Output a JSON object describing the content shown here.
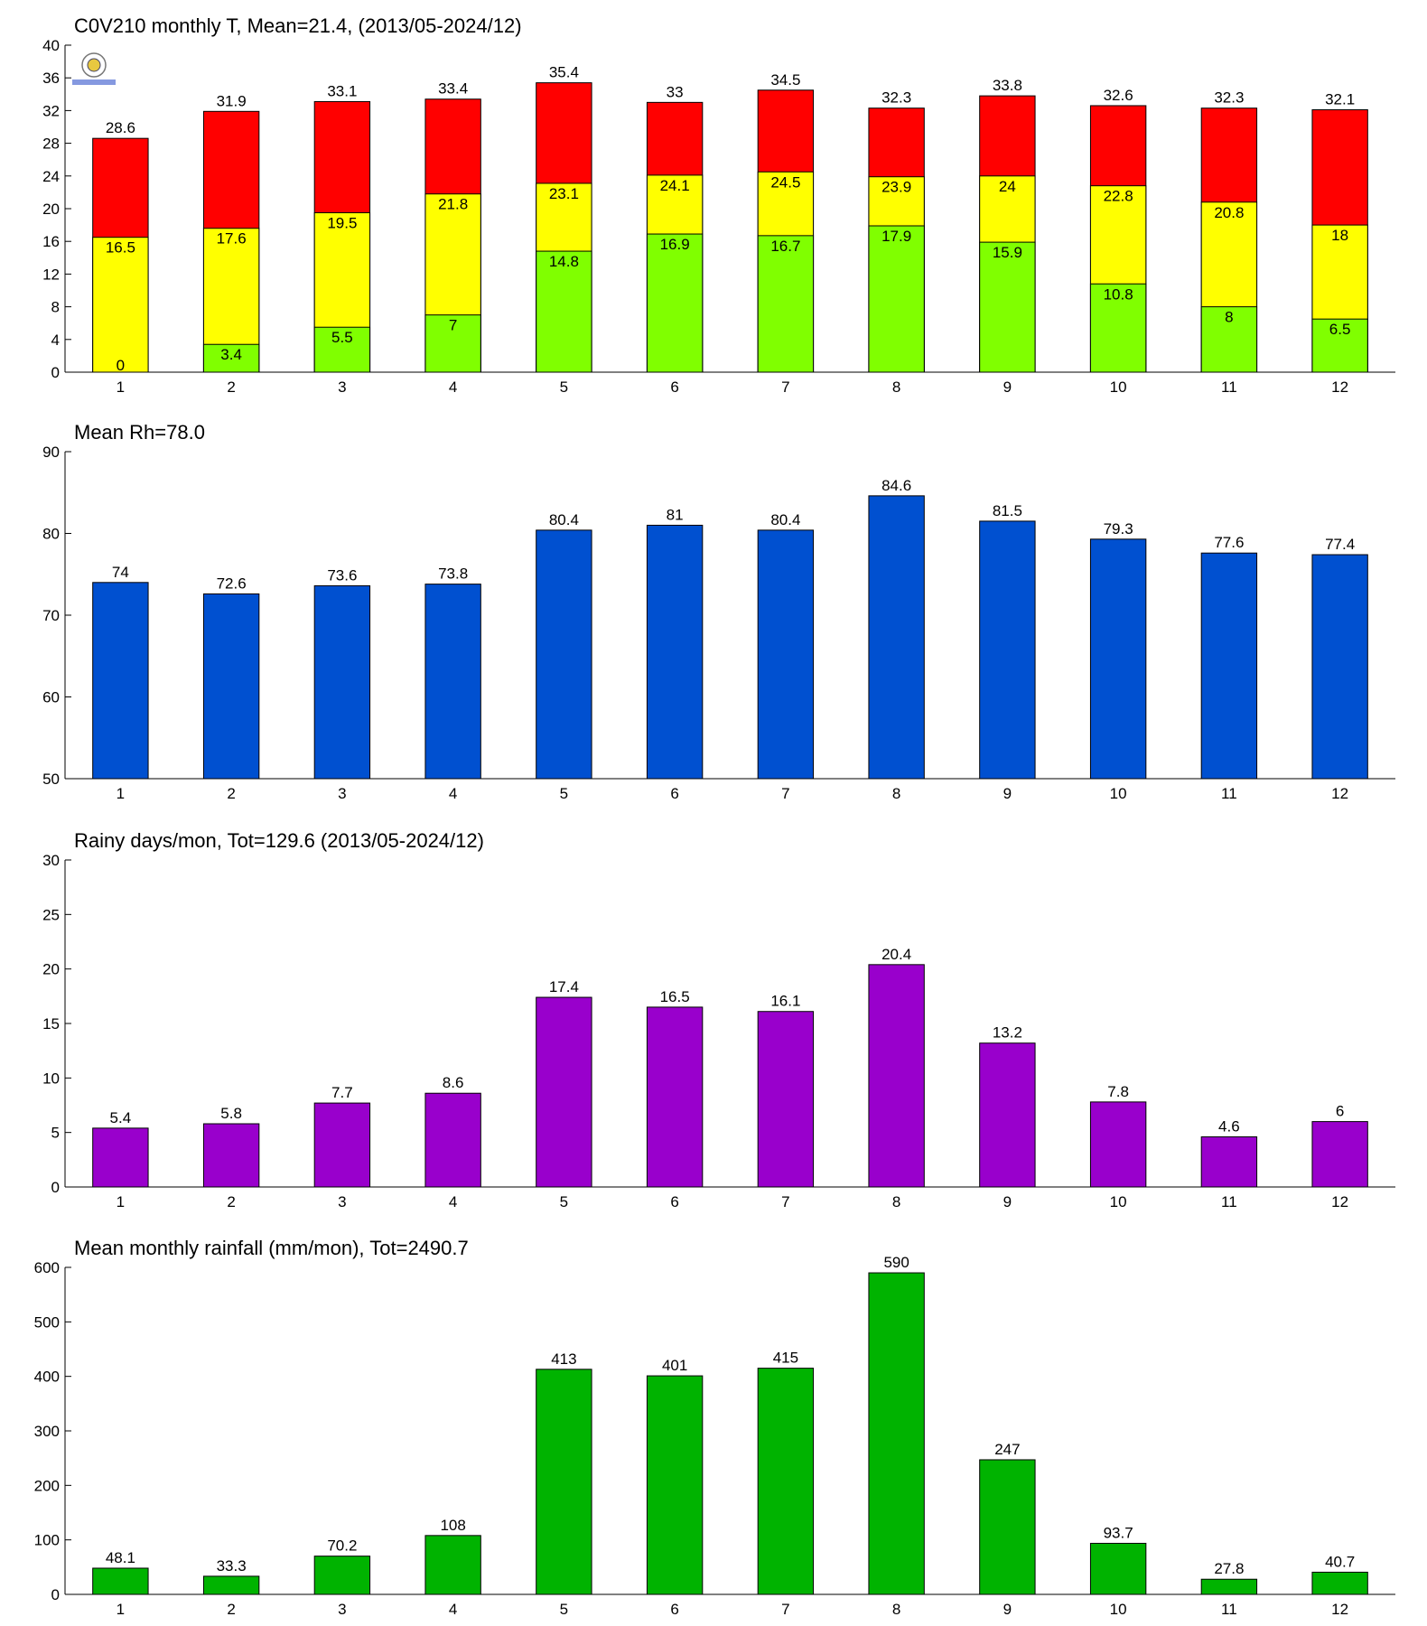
{
  "chart_data": [
    {
      "type": "bar",
      "barmode": "overlay",
      "title": "C0V210 monthly T, Mean=21.4, (2013/05-2024/12)",
      "categories": [
        "1",
        "2",
        "3",
        "4",
        "5",
        "6",
        "7",
        "8",
        "9",
        "10",
        "11",
        "12"
      ],
      "series": [
        {
          "color": "#ff0000",
          "values": [
            28.6,
            31.9,
            33.1,
            33.4,
            35.4,
            33,
            34.5,
            32.3,
            33.8,
            32.6,
            32.3,
            32.1
          ]
        },
        {
          "color": "#ffff00",
          "values": [
            16.5,
            17.6,
            19.5,
            21.8,
            23.1,
            24.1,
            24.5,
            23.9,
            24,
            22.8,
            20.8,
            18
          ]
        },
        {
          "color": "#80ff00",
          "values": [
            0,
            3.4,
            5.5,
            7,
            14.8,
            16.9,
            16.7,
            17.9,
            15.9,
            10.8,
            8,
            6.5
          ]
        }
      ],
      "ylim": [
        0,
        40
      ],
      "yticks": [
        0,
        4,
        8,
        12,
        16,
        20,
        24,
        28,
        32,
        36,
        40
      ]
    },
    {
      "type": "bar",
      "title": "Mean Rh=78.0",
      "categories": [
        "1",
        "2",
        "3",
        "4",
        "5",
        "6",
        "7",
        "8",
        "9",
        "10",
        "11",
        "12"
      ],
      "series": [
        {
          "color": "#0050d0",
          "values": [
            74,
            72.6,
            73.6,
            73.8,
            80.4,
            81,
            80.4,
            84.6,
            81.5,
            79.3,
            77.6,
            77.4
          ]
        }
      ],
      "ylim": [
        50,
        90
      ],
      "yticks": [
        50,
        60,
        70,
        80,
        90
      ]
    },
    {
      "type": "bar",
      "title": "Rainy days/mon, Tot=129.6 (2013/05-2024/12)",
      "categories": [
        "1",
        "2",
        "3",
        "4",
        "5",
        "6",
        "7",
        "8",
        "9",
        "10",
        "11",
        "12"
      ],
      "series": [
        {
          "color": "#9900cc",
          "values": [
            5.4,
            5.8,
            7.7,
            8.6,
            17.4,
            16.5,
            16.1,
            20.4,
            13.2,
            7.8,
            4.6,
            6
          ]
        }
      ],
      "ylim": [
        0,
        30
      ],
      "yticks": [
        0,
        5,
        10,
        15,
        20,
        25,
        30
      ]
    },
    {
      "type": "bar",
      "title": "Mean monthly rainfall (mm/mon), Tot=2490.7",
      "categories": [
        "1",
        "2",
        "3",
        "4",
        "5",
        "6",
        "7",
        "8",
        "9",
        "10",
        "11",
        "12"
      ],
      "series": [
        {
          "color": "#00b300",
          "values": [
            48.1,
            33.3,
            70.2,
            108,
            413,
            401,
            415,
            590,
            247,
            93.7,
            27.8,
            40.7
          ]
        }
      ],
      "ylim": [
        0,
        600
      ],
      "yticks": [
        0,
        100,
        200,
        300,
        400,
        500,
        600
      ]
    }
  ]
}
